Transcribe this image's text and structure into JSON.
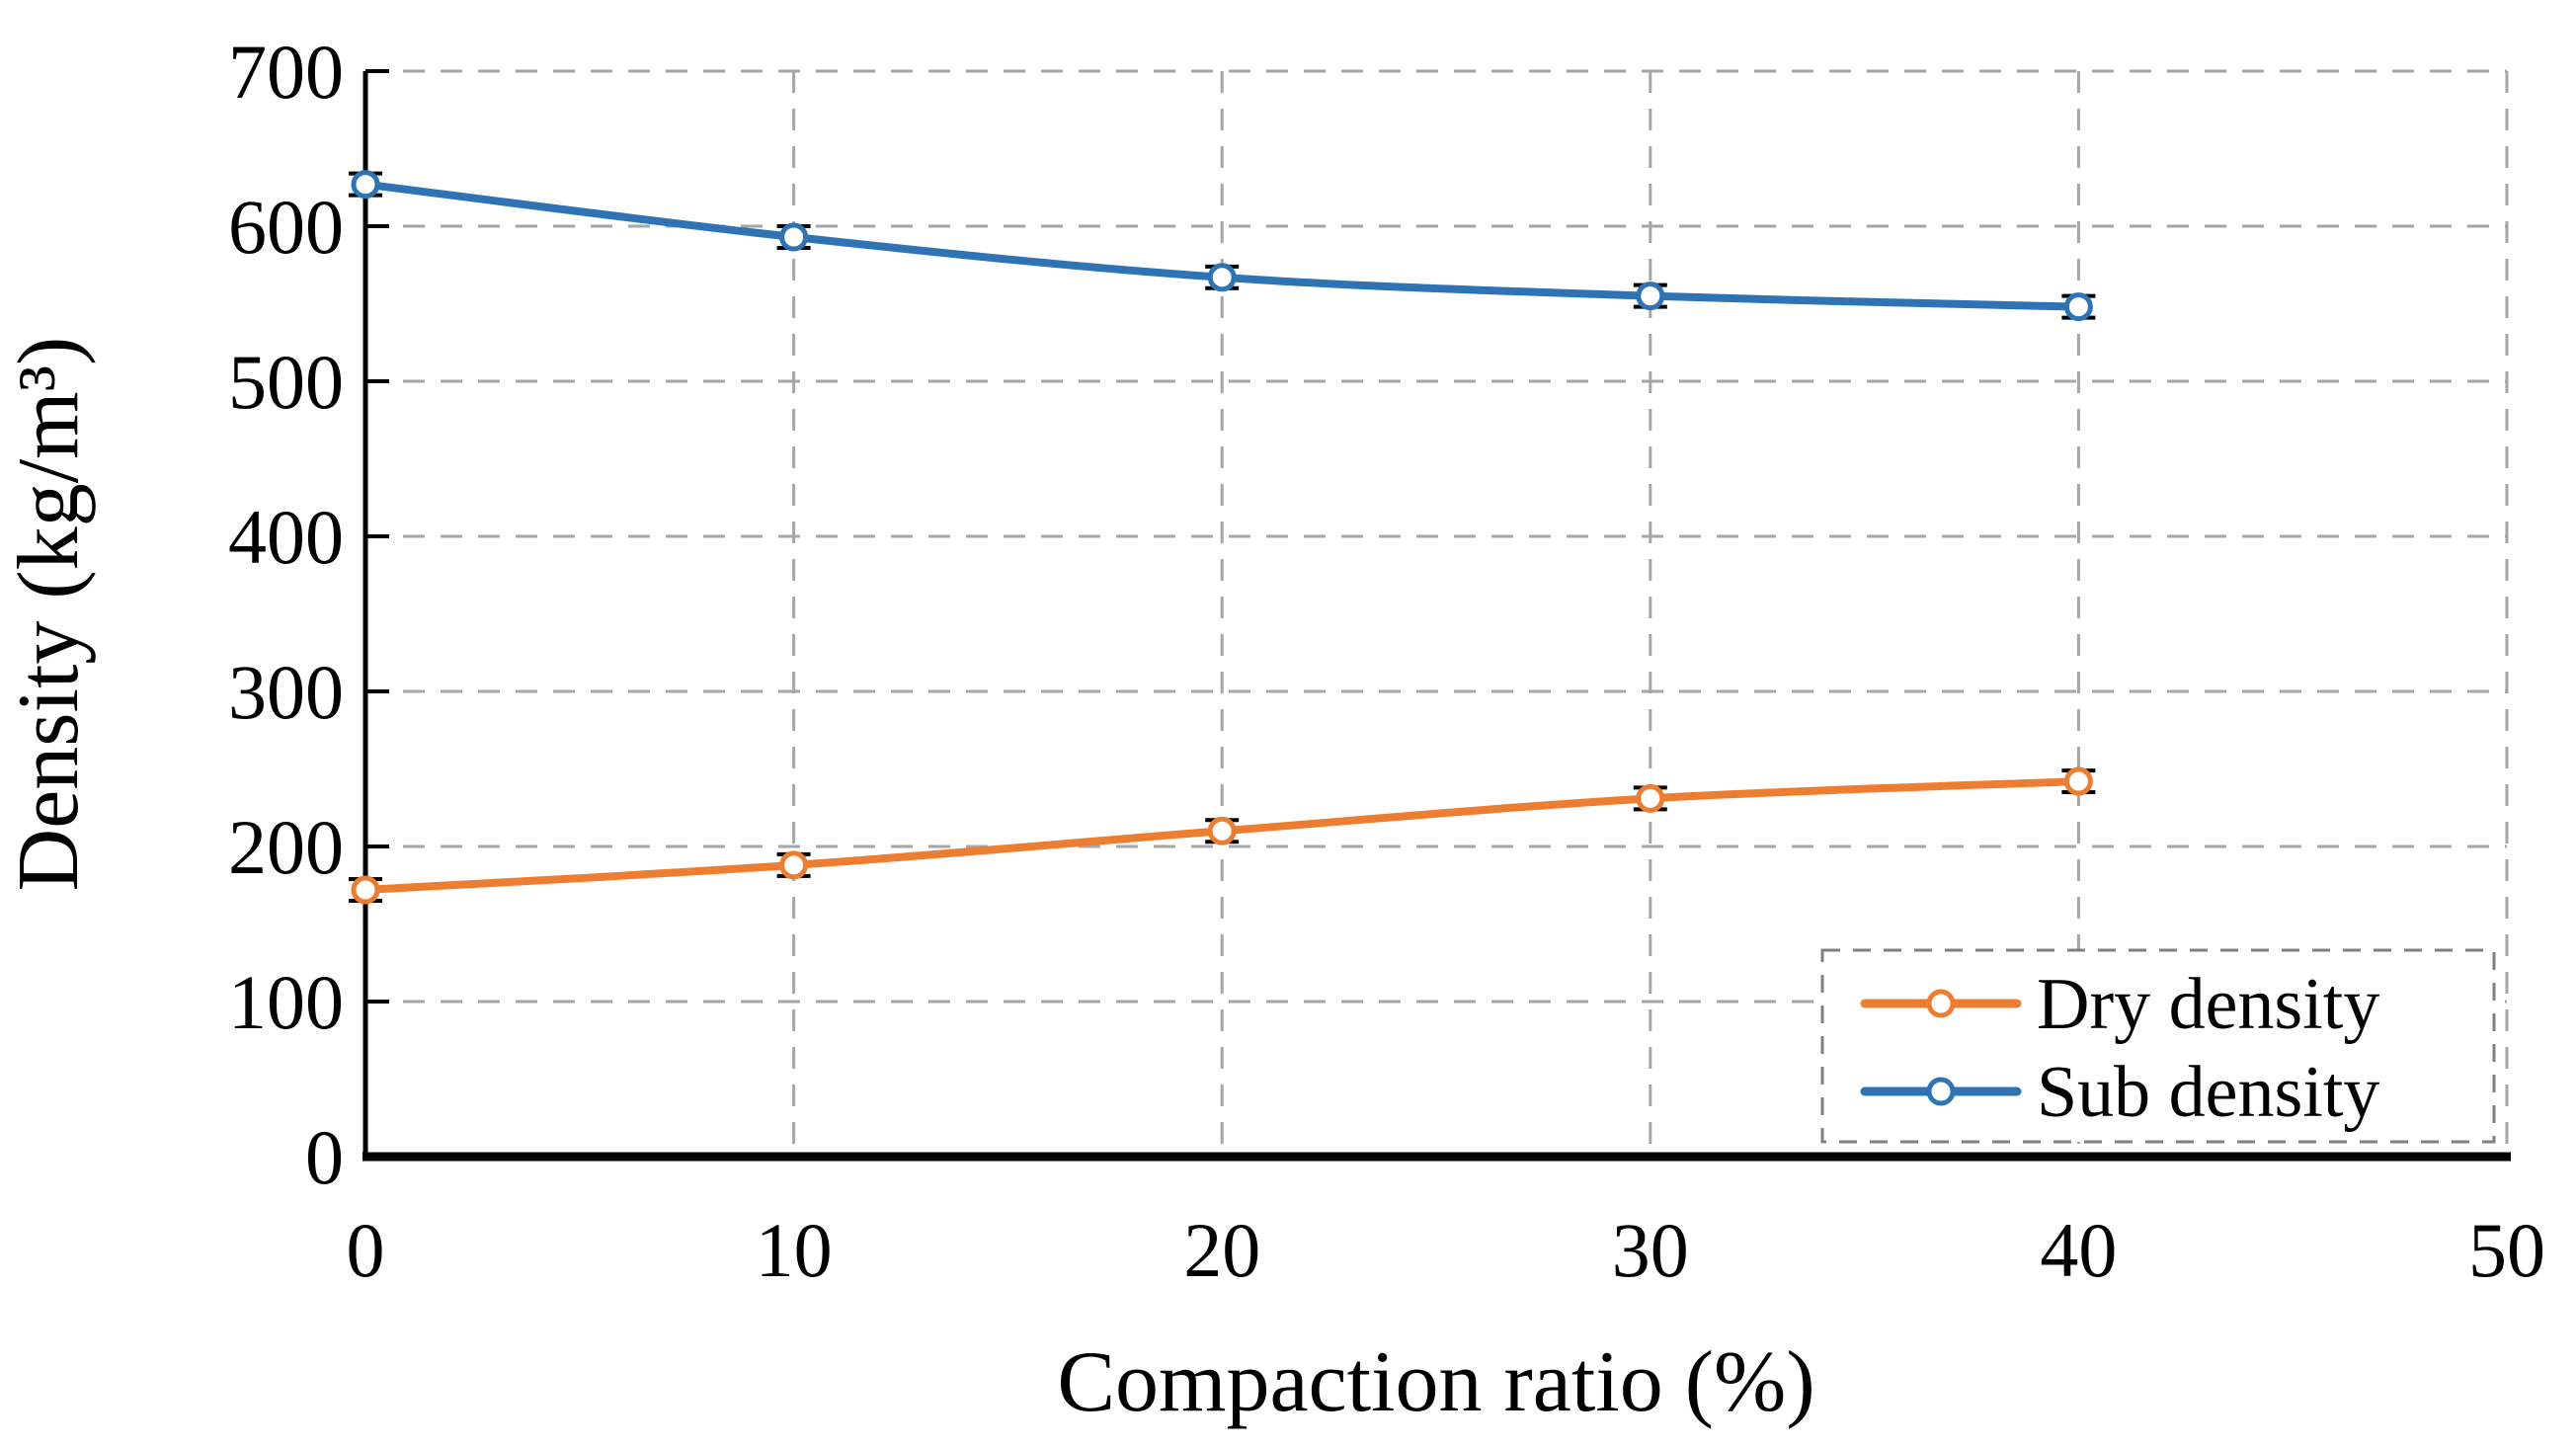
{
  "chart_data": {
    "type": "line",
    "title": "",
    "xlabel": "Compaction ratio (%)",
    "ylabel": "Density (kg/m³)",
    "x": [
      0,
      10,
      20,
      30,
      40
    ],
    "x_ticks": [
      0,
      10,
      20,
      30,
      40,
      50
    ],
    "y_ticks": [
      0,
      100,
      200,
      300,
      400,
      500,
      600,
      700
    ],
    "xlim": [
      0,
      50
    ],
    "ylim": [
      0,
      700
    ],
    "grid": true,
    "grid_style": "dashed",
    "grid_color": "#A6A6A6",
    "axis_color": "#000000",
    "background_color": "#FFFFFF",
    "marker": "circle-open",
    "error_bar_value": 7,
    "series": [
      {
        "name": "Dry density",
        "color": "#ED7D31",
        "values": [
          172,
          188,
          210,
          231,
          242
        ]
      },
      {
        "name": "Sub density",
        "color": "#2E74B5",
        "values": [
          627,
          593,
          567,
          555,
          548
        ]
      }
    ],
    "legend": {
      "position": "bottom-right",
      "border": "dashed",
      "border_color": "#7F7F7F",
      "items": [
        "Dry density",
        "Sub density"
      ]
    }
  }
}
